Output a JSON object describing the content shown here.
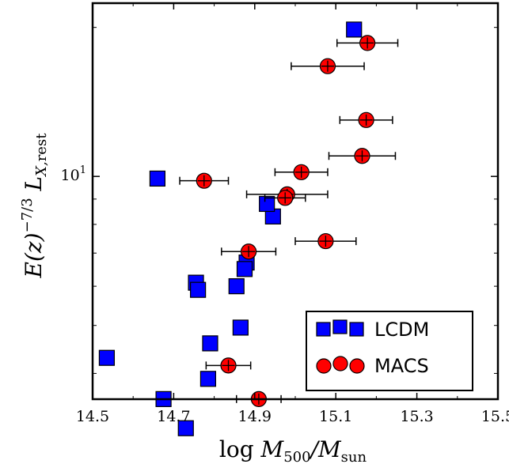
{
  "chart_data": {
    "type": "scatter",
    "xlabel": "log M500/Msun",
    "ylabel": "E(z)^-7/3 L_X,rest",
    "xlim": [
      14.5,
      15.5
    ],
    "ylim_log10": [
      0.55,
      1.35
    ],
    "y_scale": "log",
    "x_ticks": [
      "14.5",
      "14.7",
      "14.9",
      "15.1",
      "15.3",
      "15.5"
    ],
    "y_ticks": [
      {
        "value": 10,
        "label": "10"
      }
    ],
    "grid": false,
    "legend_position": "bottom-right",
    "series": [
      {
        "name": "LCDM",
        "marker": "square",
        "color": "#0000ff",
        "points": [
          {
            "x": 15.145,
            "y": 19.8
          },
          {
            "x": 14.66,
            "y": 9.9
          },
          {
            "x": 14.945,
            "y": 8.3
          },
          {
            "x": 14.93,
            "y": 8.8
          },
          {
            "x": 14.88,
            "y": 6.7
          },
          {
            "x": 14.875,
            "y": 6.5
          },
          {
            "x": 14.755,
            "y": 6.1
          },
          {
            "x": 14.76,
            "y": 5.9
          },
          {
            "x": 14.855,
            "y": 6.0
          },
          {
            "x": 14.865,
            "y": 4.95
          },
          {
            "x": 14.79,
            "y": 4.6
          },
          {
            "x": 14.535,
            "y": 4.3
          },
          {
            "x": 14.785,
            "y": 3.9
          },
          {
            "x": 14.675,
            "y": 3.55
          },
          {
            "x": 14.73,
            "y": 3.1
          }
        ]
      },
      {
        "name": "MACS",
        "marker": "circle",
        "color": "#ff0000",
        "points": [
          {
            "x": 15.178,
            "y": 18.6,
            "xerr": 0.075
          },
          {
            "x": 15.08,
            "y": 16.7,
            "xerr": 0.09
          },
          {
            "x": 15.175,
            "y": 13.0,
            "xerr": 0.065
          },
          {
            "x": 15.165,
            "y": 11.0,
            "xerr": 0.082
          },
          {
            "x": 15.015,
            "y": 10.2,
            "xerr": 0.065
          },
          {
            "x": 14.775,
            "y": 9.8,
            "xerr": 0.06
          },
          {
            "x": 14.98,
            "y": 9.2,
            "xerr": 0.1
          },
          {
            "x": 14.975,
            "y": 9.05,
            "xerr": 0.05
          },
          {
            "x": 14.885,
            "y": 7.05,
            "xerr": 0.067
          },
          {
            "x": 15.075,
            "y": 7.4,
            "xerr": 0.075
          },
          {
            "x": 14.835,
            "y": 4.15,
            "xerr": 0.055
          },
          {
            "x": 14.91,
            "y": 3.55,
            "xerr": 0.055
          }
        ]
      }
    ]
  },
  "legend": {
    "lcdm_label": "LCDM",
    "macs_label": "MACS"
  }
}
